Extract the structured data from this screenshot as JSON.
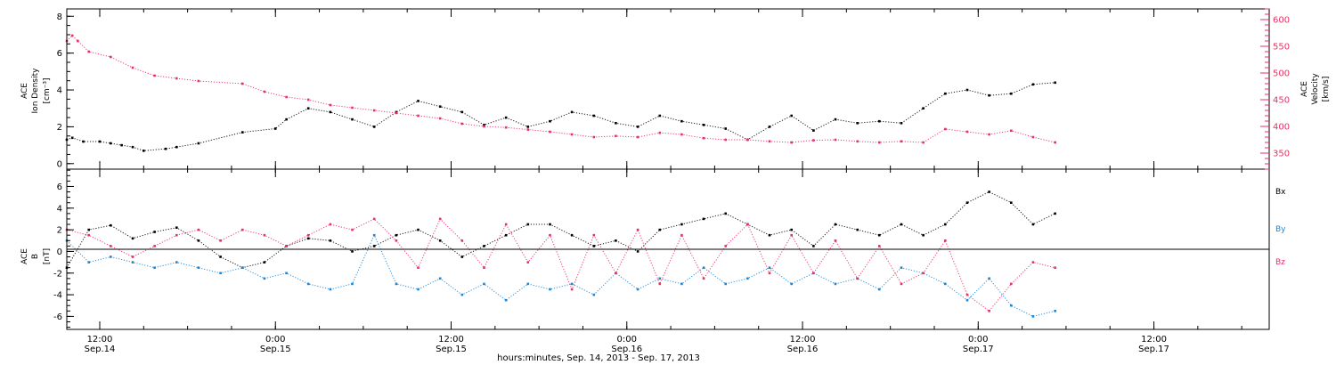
{
  "colors": {
    "black": "#000000",
    "pink": "#ec2e63",
    "blue": "#1a86d8"
  },
  "chart_data": [
    {
      "type": "scatter",
      "panel": "plasma",
      "ylabel_left": [
        "ACE",
        "Ion Density",
        "[cm⁻³]"
      ],
      "ylabel_right": [
        "ACE",
        "Velocity",
        "[km/s]"
      ],
      "ylim_left": [
        -0.3,
        8.4
      ],
      "yticks_left": [
        "0",
        "2",
        "4",
        "6",
        "8"
      ],
      "ylim_right": [
        320,
        620
      ],
      "yticks_right": [
        "350",
        "400",
        "450",
        "500",
        "550",
        "600"
      ],
      "series": [
        {
          "name": "Ion Density",
          "axis": "left",
          "color": "#000000",
          "x": [
            0,
            0.5,
            1.5,
            3,
            4,
            5,
            6,
            7,
            9,
            10,
            12,
            16,
            19,
            20,
            22,
            24,
            26,
            28,
            30,
            32,
            34,
            36,
            38,
            40,
            42,
            44,
            46,
            48,
            50,
            52,
            54,
            56,
            58,
            60,
            62,
            64,
            66,
            68,
            70,
            72,
            74,
            76,
            78,
            80,
            82,
            84,
            86,
            88,
            90
          ],
          "y": [
            1.3,
            1.4,
            1.2,
            1.2,
            1.1,
            1.0,
            0.9,
            0.7,
            0.8,
            0.9,
            1.1,
            1.7,
            1.9,
            2.4,
            3.0,
            2.8,
            2.4,
            2.0,
            2.8,
            3.4,
            3.1,
            2.8,
            2.1,
            2.5,
            2.0,
            2.3,
            2.8,
            2.6,
            2.2,
            2.0,
            2.6,
            2.3,
            2.1,
            1.9,
            1.3,
            2.0,
            2.6,
            1.8,
            2.4,
            2.2,
            2.3,
            2.2,
            3.0,
            3.8,
            4.0,
            3.7,
            3.8,
            4.3,
            4.4
          ]
        },
        {
          "name": "Velocity",
          "axis": "right",
          "color": "#ec2e63",
          "x": [
            0,
            0.5,
            1,
            2,
            4,
            6,
            8,
            10,
            12,
            16,
            18,
            20,
            22,
            24,
            26,
            28,
            30,
            32,
            34,
            36,
            38,
            40,
            42,
            44,
            46,
            48,
            50,
            52,
            54,
            56,
            58,
            60,
            62,
            64,
            66,
            68,
            70,
            72,
            74,
            76,
            78,
            80,
            82,
            84,
            86,
            88,
            90
          ],
          "y": [
            560,
            570,
            560,
            540,
            530,
            510,
            495,
            490,
            485,
            480,
            465,
            455,
            450,
            440,
            435,
            430,
            425,
            420,
            415,
            405,
            400,
            398,
            394,
            390,
            385,
            380,
            382,
            380,
            388,
            385,
            378,
            375,
            375,
            372,
            370,
            374,
            375,
            372,
            370,
            372,
            370,
            395,
            390,
            385,
            392,
            380,
            370
          ]
        }
      ]
    },
    {
      "type": "scatter",
      "panel": "magnetic field",
      "ylabel_left": [
        "ACE",
        "B",
        "[nT]"
      ],
      "ylim_left": [
        -7.2,
        7.6
      ],
      "yticks_left": [
        "-6",
        "-4",
        "-2",
        "0",
        "2",
        "4",
        "6"
      ],
      "zero_line": true,
      "legend": [
        "Bx",
        "By",
        "Bz"
      ],
      "series": [
        {
          "name": "Bx",
          "color": "#000000",
          "x": [
            0,
            2,
            4,
            6,
            8,
            10,
            12,
            14,
            16,
            18,
            20,
            22,
            24,
            26,
            28,
            30,
            32,
            34,
            36,
            38,
            40,
            42,
            44,
            46,
            48,
            50,
            52,
            54,
            56,
            58,
            60,
            62,
            64,
            66,
            68,
            70,
            72,
            74,
            76,
            78,
            80,
            82,
            84,
            86,
            88,
            90
          ],
          "y": [
            -1.5,
            2.0,
            2.4,
            1.2,
            1.8,
            2.2,
            1.0,
            -0.5,
            -1.5,
            -1.0,
            0.5,
            1.2,
            1.0,
            0.0,
            0.5,
            1.5,
            2.0,
            1.0,
            -0.5,
            0.5,
            1.5,
            2.5,
            2.5,
            1.5,
            0.5,
            1.0,
            0.0,
            2.0,
            2.5,
            3.0,
            3.5,
            2.5,
            1.5,
            2.0,
            0.5,
            2.5,
            2.0,
            1.5,
            2.5,
            1.5,
            2.5,
            4.5,
            5.5,
            4.5,
            2.5,
            3.5
          ]
        },
        {
          "name": "By",
          "color": "#1a86d8",
          "x": [
            0,
            2,
            4,
            6,
            8,
            10,
            12,
            14,
            16,
            18,
            20,
            22,
            24,
            26,
            28,
            30,
            32,
            34,
            36,
            38,
            40,
            42,
            44,
            46,
            48,
            50,
            52,
            54,
            56,
            58,
            60,
            62,
            64,
            66,
            68,
            70,
            72,
            74,
            76,
            78,
            80,
            82,
            84,
            86,
            88,
            90
          ],
          "y": [
            1.0,
            -1.0,
            -0.5,
            -1.0,
            -1.5,
            -1.0,
            -1.5,
            -2.0,
            -1.5,
            -2.5,
            -2.0,
            -3.0,
            -3.5,
            -3.0,
            1.5,
            -3.0,
            -3.5,
            -2.5,
            -4.0,
            -3.0,
            -4.5,
            -3.0,
            -3.5,
            -3.0,
            -4.0,
            -2.0,
            -3.5,
            -2.5,
            -3.0,
            -1.5,
            -3.0,
            -2.5,
            -1.5,
            -3.0,
            -2.0,
            -3.0,
            -2.5,
            -3.5,
            -1.5,
            -2.0,
            -3.0,
            -4.5,
            -2.5,
            -5.0,
            -6.0,
            -5.5
          ]
        },
        {
          "name": "Bz",
          "color": "#ec2e63",
          "x": [
            0,
            2,
            4,
            6,
            8,
            10,
            12,
            14,
            16,
            18,
            20,
            22,
            24,
            26,
            28,
            30,
            32,
            34,
            36,
            38,
            40,
            42,
            44,
            46,
            48,
            50,
            52,
            54,
            56,
            58,
            60,
            62,
            64,
            66,
            68,
            70,
            72,
            74,
            76,
            78,
            80,
            82,
            84,
            86,
            88,
            90
          ],
          "y": [
            2.0,
            1.5,
            0.5,
            -0.5,
            0.5,
            1.5,
            2.0,
            1.0,
            2.0,
            1.5,
            0.5,
            1.5,
            2.5,
            2.0,
            3.0,
            1.0,
            -1.5,
            3.0,
            1.0,
            -1.5,
            2.5,
            -1.0,
            1.5,
            -3.5,
            1.5,
            -2.0,
            2.0,
            -3.0,
            1.5,
            -2.5,
            0.5,
            2.5,
            -2.0,
            1.5,
            -2.0,
            1.0,
            -2.5,
            0.5,
            -3.0,
            -2.0,
            1.0,
            -4.0,
            -5.5,
            -3.0,
            -1.0,
            -1.5
          ]
        }
      ]
    }
  ],
  "x_axis": {
    "xlabel": "hours:minutes, Sep. 14, 2013 - Sep. 17, 2013",
    "xlim": [
      0,
      109.5
    ],
    "ticks": [
      {
        "value": 3,
        "time": "12:00",
        "date": "Sep.14"
      },
      {
        "value": 19,
        "time": "0:00",
        "date": "Sep.15"
      },
      {
        "value": 35,
        "time": "12:00",
        "date": "Sep.15"
      },
      {
        "value": 51,
        "time": "0:00",
        "date": "Sep.16"
      },
      {
        "value": 67,
        "time": "12:00",
        "date": "Sep.16"
      },
      {
        "value": 83,
        "time": "0:00",
        "date": "Sep.17"
      },
      {
        "value": 99,
        "time": "12:00",
        "date": "Sep.17"
      }
    ]
  }
}
